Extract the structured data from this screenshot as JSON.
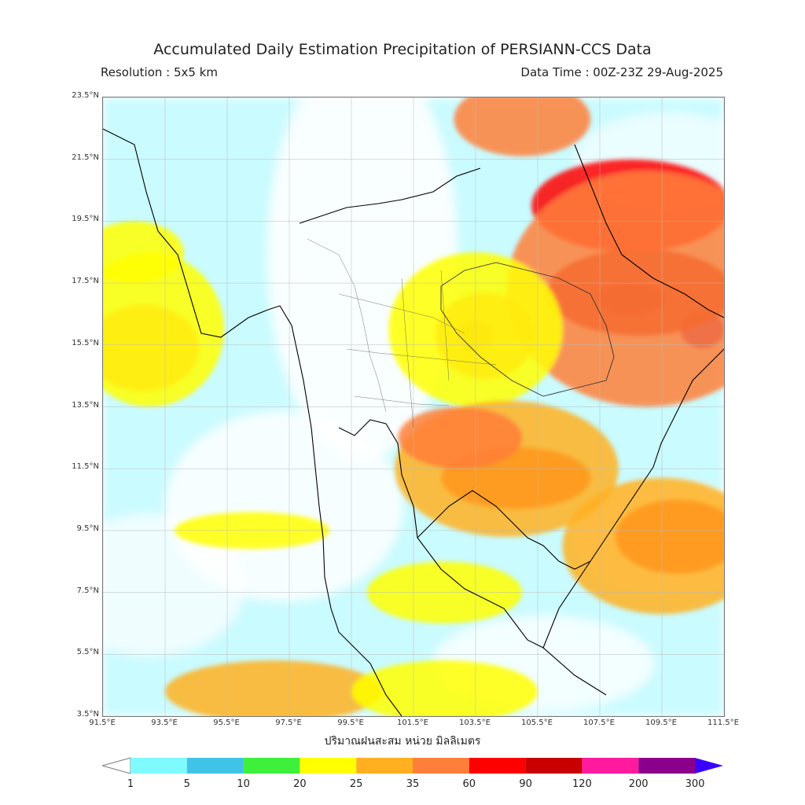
{
  "title": "Accumulated Daily Estimation Precipitation of PERSIANN-CCS Data",
  "resolution": "Resolution : 5x5 km",
  "data_time": "Data Time : 00Z-23Z 29-Aug-2025",
  "xlabel": "ปริมาณฝนสะสม หน่วย มิลลิเมตร",
  "lat_labels": [
    "23.5°N",
    "21.5°N",
    "19.5°N",
    "17.5°N",
    "15.5°N",
    "13.5°N",
    "11.5°N",
    "9.5°N",
    "7.5°N",
    "5.5°N",
    "3.5°N"
  ],
  "lon_labels": [
    "91.5°E",
    "93.5°E",
    "95.5°E",
    "97.5°E",
    "99.5°E",
    "101.5°E",
    "103.5°E",
    "105.5°E",
    "107.5°E",
    "109.5°E",
    "111.5°E"
  ],
  "colorbar": {
    "labels": [
      "1",
      "5",
      "10",
      "20",
      "25",
      "35",
      "60",
      "90",
      "120",
      "200",
      "300"
    ],
    "colors": [
      "#7ffbff",
      "#3fc4e8",
      "#3ef03b",
      "#ffff00",
      "#ffb020",
      "#ff7f3a",
      "#ff0000",
      "#c80000",
      "#ff1a9e",
      "#8b008b"
    ],
    "under_color": "#ffffff",
    "over_color": "#3a00ff"
  },
  "map_extent": {
    "lon_min": 91.5,
    "lon_max": 111.5,
    "lat_min": 3.5,
    "lat_max": 23.5
  },
  "rain_features": [
    {
      "lon": 108.5,
      "lat": 17.0,
      "level": 300,
      "rx": 1.1,
      "ry": 0.5
    },
    {
      "lon": 110.8,
      "lat": 16.0,
      "level": 200,
      "rx": 0.7,
      "ry": 0.6
    },
    {
      "lon": 108.8,
      "lat": 17.2,
      "level": 90,
      "rx": 3.0,
      "ry": 1.4
    },
    {
      "lon": 108.5,
      "lat": 20.0,
      "level": 60,
      "rx": 3.2,
      "ry": 1.5
    },
    {
      "lon": 109.0,
      "lat": 17.3,
      "level": 35,
      "rx": 4.5,
      "ry": 3.8
    },
    {
      "lon": 103.5,
      "lat": 15.8,
      "level": 90,
      "rx": 0.6,
      "ry": 0.5
    },
    {
      "lon": 103.8,
      "lat": 15.8,
      "level": 35,
      "rx": 1.6,
      "ry": 1.4
    },
    {
      "lon": 103.5,
      "lat": 16.0,
      "level": 20,
      "rx": 2.8,
      "ry": 2.5
    },
    {
      "lon": 104.8,
      "lat": 11.2,
      "level": 60,
      "rx": 2.4,
      "ry": 1.0
    },
    {
      "lon": 104.5,
      "lat": 11.5,
      "level": 25,
      "rx": 3.6,
      "ry": 2.2
    },
    {
      "lon": 103.0,
      "lat": 12.5,
      "level": 35,
      "rx": 2.0,
      "ry": 1.0
    },
    {
      "lon": 110.0,
      "lat": 9.3,
      "level": 60,
      "rx": 2.0,
      "ry": 1.2
    },
    {
      "lon": 109.5,
      "lat": 9.0,
      "level": 25,
      "rx": 3.2,
      "ry": 2.2
    },
    {
      "lon": 92.8,
      "lat": 15.4,
      "level": 35,
      "rx": 1.8,
      "ry": 1.4
    },
    {
      "lon": 93.0,
      "lat": 16.0,
      "level": 20,
      "rx": 2.4,
      "ry": 2.5
    },
    {
      "lon": 92.5,
      "lat": 18.5,
      "level": 20,
      "rx": 1.6,
      "ry": 1.0
    },
    {
      "lon": 102.5,
      "lat": 7.5,
      "level": 20,
      "rx": 2.5,
      "ry": 1.0
    },
    {
      "lon": 97.0,
      "lat": 4.3,
      "level": 25,
      "rx": 3.5,
      "ry": 1.0
    },
    {
      "lon": 102.5,
      "lat": 4.3,
      "level": 20,
      "rx": 3.0,
      "ry": 1.0
    },
    {
      "lon": 105.0,
      "lat": 22.8,
      "level": 35,
      "rx": 2.2,
      "ry": 1.2
    },
    {
      "lon": 96.3,
      "lat": 9.5,
      "level": 20,
      "rx": 2.5,
      "ry": 0.6
    }
  ]
}
